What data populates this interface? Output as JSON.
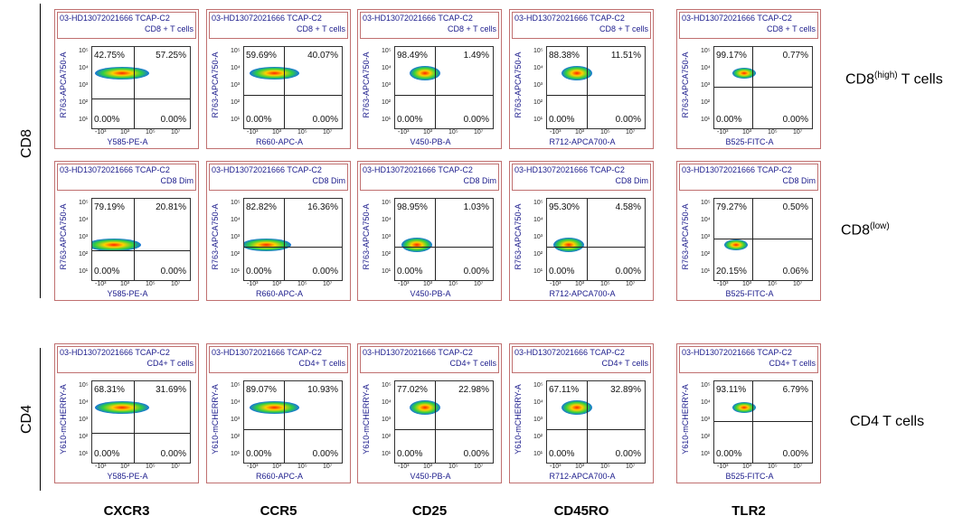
{
  "header_id": "03-HD13072021666 TCAP-C2",
  "row_labels": [
    "CD8",
    "CD4"
  ],
  "right_labels": [
    {
      "main": "CD8",
      "sup": "(high)",
      "rest": " T cells"
    },
    {
      "main": "CD8",
      "sup": "(low)"
    },
    {
      "main": "CD4 T cells"
    }
  ],
  "column_labels": [
    "CXCR3",
    "CCR5",
    "CD25",
    "CD45RO",
    "TLR2"
  ],
  "x_labels": [
    "Y585-PE-A",
    "R660-APC-A",
    "V450-PB-A",
    "R712-APCA700-A",
    "B525-FITC-A"
  ],
  "y_ticks": [
    "10⁵",
    "10⁴",
    "10³",
    "10²",
    "10¹"
  ],
  "x_ticks": [
    "-10³",
    "10³",
    "10⁵",
    "10⁷"
  ],
  "rows": [
    {
      "subtitle": "CD8 + T cells",
      "y_label": "R763-APCA750-A",
      "panels": [
        {
          "quadrants": [
            "42.75%",
            "57.25%",
            "0.00%",
            "0.00%"
          ]
        },
        {
          "quadrants": [
            "59.69%",
            "40.07%",
            "0.00%",
            "0.00%"
          ]
        },
        {
          "quadrants": [
            "98.49%",
            "1.49%",
            "0.00%",
            "0.00%"
          ]
        },
        {
          "quadrants": [
            "88.38%",
            "11.51%",
            "0.00%",
            "0.00%"
          ]
        },
        {
          "quadrants": [
            "99.17%",
            "0.77%",
            "0.00%",
            "0.00%"
          ]
        }
      ]
    },
    {
      "subtitle": "CD8 Dim",
      "y_label": "R763-APCA750-A",
      "panels": [
        {
          "quadrants": [
            "79.19%",
            "20.81%",
            "0.00%",
            "0.00%"
          ]
        },
        {
          "quadrants": [
            "82.82%",
            "16.36%",
            "0.00%",
            "0.00%"
          ]
        },
        {
          "quadrants": [
            "98.95%",
            "1.03%",
            "0.00%",
            "0.00%"
          ]
        },
        {
          "quadrants": [
            "95.30%",
            "4.58%",
            "0.00%",
            "0.00%"
          ]
        },
        {
          "quadrants": [
            "79.27%",
            "0.50%",
            "20.15%",
            "0.06%"
          ]
        }
      ]
    },
    {
      "subtitle": "CD4+ T cells",
      "y_label": "Y610-mCHERRY-A",
      "panels": [
        {
          "quadrants": [
            "68.31%",
            "31.69%",
            "0.00%",
            "0.00%"
          ]
        },
        {
          "quadrants": [
            "89.07%",
            "10.93%",
            "0.00%",
            "0.00%"
          ]
        },
        {
          "quadrants": [
            "77.02%",
            "22.98%",
            "0.00%",
            "0.00%"
          ]
        },
        {
          "quadrants": [
            "67.11%",
            "32.89%",
            "0.00%",
            "0.00%"
          ]
        },
        {
          "quadrants": [
            "93.11%",
            "6.79%",
            "0.00%",
            "0.00%"
          ]
        }
      ]
    }
  ]
}
